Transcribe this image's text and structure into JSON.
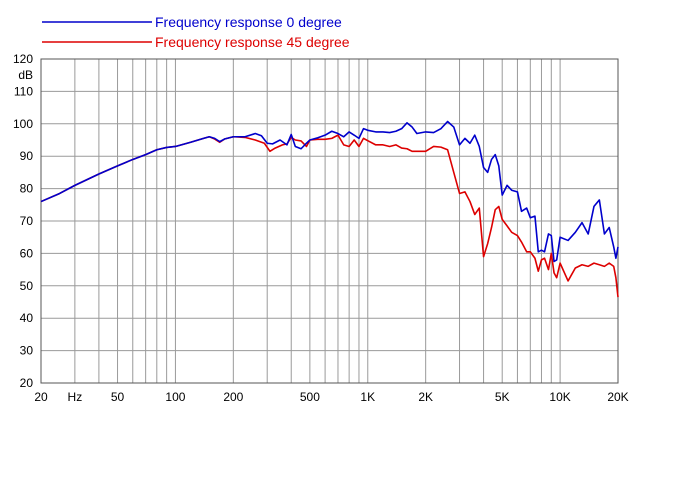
{
  "chart_data": {
    "type": "line",
    "title": "",
    "xlabel": "Hz",
    "ylabel": "dB",
    "x_scale": "log",
    "xlim": [
      20,
      20000
    ],
    "ylim": [
      20,
      120
    ],
    "grid": true,
    "legend_position": "top-left",
    "x_tick_labels": [
      {
        "value": 20,
        "label": "20"
      },
      {
        "value": 30,
        "label": "Hz"
      },
      {
        "value": 50,
        "label": "50"
      },
      {
        "value": 100,
        "label": "100"
      },
      {
        "value": 200,
        "label": "200"
      },
      {
        "value": 500,
        "label": "500"
      },
      {
        "value": 1000,
        "label": "1K"
      },
      {
        "value": 2000,
        "label": "2K"
      },
      {
        "value": 5000,
        "label": "5K"
      },
      {
        "value": 10000,
        "label": "10K"
      },
      {
        "value": 20000,
        "label": "20K"
      }
    ],
    "x_gridlines": [
      20,
      30,
      40,
      50,
      60,
      70,
      80,
      90,
      100,
      200,
      300,
      400,
      500,
      600,
      700,
      800,
      900,
      1000,
      2000,
      3000,
      4000,
      5000,
      6000,
      7000,
      8000,
      9000,
      10000,
      20000
    ],
    "y_ticks": [
      20,
      30,
      40,
      50,
      60,
      70,
      80,
      90,
      100,
      110,
      120
    ],
    "series": [
      {
        "name": "Frequency response 0 degree",
        "color": "#0000cc",
        "points": [
          [
            20,
            76
          ],
          [
            25,
            78.5
          ],
          [
            30,
            81
          ],
          [
            40,
            84.5
          ],
          [
            50,
            87
          ],
          [
            60,
            89
          ],
          [
            70,
            90.5
          ],
          [
            80,
            92
          ],
          [
            90,
            92.7
          ],
          [
            100,
            93
          ],
          [
            120,
            94.3
          ],
          [
            140,
            95.5
          ],
          [
            150,
            96
          ],
          [
            160,
            95.5
          ],
          [
            170,
            94.5
          ],
          [
            180,
            95.3
          ],
          [
            200,
            96
          ],
          [
            230,
            96
          ],
          [
            260,
            97
          ],
          [
            280,
            96.3
          ],
          [
            300,
            94
          ],
          [
            320,
            93.8
          ],
          [
            350,
            95
          ],
          [
            380,
            93.5
          ],
          [
            400,
            96.7
          ],
          [
            420,
            93
          ],
          [
            450,
            92.3
          ],
          [
            480,
            94
          ],
          [
            500,
            95
          ],
          [
            550,
            95.7
          ],
          [
            600,
            96.5
          ],
          [
            650,
            97.7
          ],
          [
            700,
            97
          ],
          [
            750,
            96
          ],
          [
            800,
            97.5
          ],
          [
            850,
            96.5
          ],
          [
            900,
            95.5
          ],
          [
            950,
            98.5
          ],
          [
            1000,
            98
          ],
          [
            1100,
            97.5
          ],
          [
            1200,
            97.5
          ],
          [
            1300,
            97.3
          ],
          [
            1400,
            97.7
          ],
          [
            1500,
            98.5
          ],
          [
            1600,
            100.3
          ],
          [
            1700,
            99
          ],
          [
            1800,
            97
          ],
          [
            2000,
            97.5
          ],
          [
            2200,
            97.3
          ],
          [
            2400,
            98.5
          ],
          [
            2600,
            100.7
          ],
          [
            2800,
            99
          ],
          [
            3000,
            93.5
          ],
          [
            3200,
            95.5
          ],
          [
            3400,
            94
          ],
          [
            3600,
            96.5
          ],
          [
            3800,
            93
          ],
          [
            4000,
            86.5
          ],
          [
            4200,
            85
          ],
          [
            4400,
            89
          ],
          [
            4600,
            90.5
          ],
          [
            4800,
            87
          ],
          [
            5000,
            78
          ],
          [
            5300,
            81
          ],
          [
            5600,
            79.5
          ],
          [
            6000,
            79
          ],
          [
            6300,
            73
          ],
          [
            6700,
            74
          ],
          [
            7000,
            71
          ],
          [
            7400,
            71.5
          ],
          [
            7700,
            60.5
          ],
          [
            8000,
            61
          ],
          [
            8300,
            60.5
          ],
          [
            8700,
            66
          ],
          [
            9000,
            65.5
          ],
          [
            9300,
            57.5
          ],
          [
            9600,
            58
          ],
          [
            10000,
            65
          ],
          [
            11000,
            64
          ],
          [
            12000,
            66.5
          ],
          [
            13000,
            69.5
          ],
          [
            14000,
            66
          ],
          [
            15000,
            74.5
          ],
          [
            16000,
            76.5
          ],
          [
            17000,
            66
          ],
          [
            18000,
            68
          ],
          [
            19000,
            62
          ],
          [
            19500,
            58.5
          ],
          [
            20000,
            62
          ]
        ]
      },
      {
        "name": "Frequency response 45 degree",
        "color": "#dd0000",
        "points": [
          [
            20,
            76
          ],
          [
            25,
            78.5
          ],
          [
            30,
            81
          ],
          [
            40,
            84.5
          ],
          [
            50,
            87
          ],
          [
            60,
            89
          ],
          [
            70,
            90.5
          ],
          [
            80,
            92
          ],
          [
            90,
            92.7
          ],
          [
            100,
            93
          ],
          [
            120,
            94.3
          ],
          [
            140,
            95.5
          ],
          [
            150,
            96
          ],
          [
            160,
            95.3
          ],
          [
            170,
            94.3
          ],
          [
            180,
            95.3
          ],
          [
            200,
            96
          ],
          [
            230,
            95.8
          ],
          [
            260,
            95
          ],
          [
            290,
            94
          ],
          [
            310,
            91.5
          ],
          [
            330,
            92.5
          ],
          [
            360,
            93.5
          ],
          [
            380,
            93.8
          ],
          [
            400,
            95.8
          ],
          [
            420,
            95
          ],
          [
            450,
            94.7
          ],
          [
            480,
            93
          ],
          [
            500,
            95
          ],
          [
            550,
            95.2
          ],
          [
            600,
            95.2
          ],
          [
            650,
            95.5
          ],
          [
            700,
            96.5
          ],
          [
            750,
            93.5
          ],
          [
            800,
            93
          ],
          [
            850,
            95
          ],
          [
            900,
            93
          ],
          [
            950,
            95.5
          ],
          [
            1000,
            94.8
          ],
          [
            1100,
            93.5
          ],
          [
            1200,
            93.5
          ],
          [
            1300,
            93
          ],
          [
            1400,
            93.5
          ],
          [
            1500,
            92.5
          ],
          [
            1600,
            92.3
          ],
          [
            1700,
            91.5
          ],
          [
            1800,
            91.5
          ],
          [
            2000,
            91.5
          ],
          [
            2200,
            93
          ],
          [
            2400,
            92.8
          ],
          [
            2600,
            92
          ],
          [
            2800,
            85
          ],
          [
            3000,
            78.5
          ],
          [
            3200,
            79
          ],
          [
            3400,
            76
          ],
          [
            3600,
            72
          ],
          [
            3800,
            74
          ],
          [
            4000,
            59
          ],
          [
            4200,
            63
          ],
          [
            4400,
            68
          ],
          [
            4600,
            73.5
          ],
          [
            4800,
            74.5
          ],
          [
            5000,
            70.5
          ],
          [
            5300,
            68.5
          ],
          [
            5600,
            66.5
          ],
          [
            6000,
            65.5
          ],
          [
            6300,
            63.5
          ],
          [
            6700,
            60.5
          ],
          [
            7000,
            60.5
          ],
          [
            7400,
            58.5
          ],
          [
            7700,
            54.5
          ],
          [
            8000,
            58
          ],
          [
            8300,
            58.5
          ],
          [
            8700,
            55
          ],
          [
            9000,
            60
          ],
          [
            9300,
            54
          ],
          [
            9600,
            52.5
          ],
          [
            10000,
            57
          ],
          [
            11000,
            51.5
          ],
          [
            12000,
            55.5
          ],
          [
            13000,
            56.5
          ],
          [
            14000,
            56
          ],
          [
            15000,
            57
          ],
          [
            16000,
            56.5
          ],
          [
            17000,
            56
          ],
          [
            18000,
            57
          ],
          [
            19000,
            56
          ],
          [
            19500,
            52.5
          ],
          [
            20000,
            46.5
          ]
        ]
      }
    ]
  }
}
